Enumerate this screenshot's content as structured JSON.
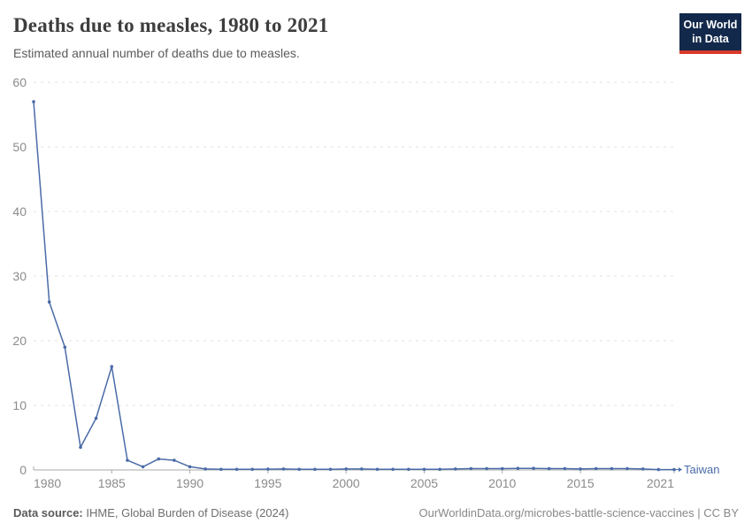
{
  "header": {
    "title": "Deaths due to measles, 1980 to 2021",
    "subtitle": "Estimated annual number of deaths due to measles.",
    "logo_line1": "Our World",
    "logo_line2": "in Data"
  },
  "chart_data": {
    "type": "line",
    "title": "Deaths due to measles, 1980 to 2021",
    "xlabel": "",
    "ylabel": "",
    "xlim": [
      1980,
      2021
    ],
    "ylim": [
      0,
      60
    ],
    "grid": "horizontal-dashed",
    "legend_position": "end-of-line",
    "x_ticks": [
      1980,
      1985,
      1990,
      1995,
      2000,
      2005,
      2010,
      2015,
      2021
    ],
    "y_ticks": [
      0,
      10,
      20,
      30,
      40,
      50,
      60
    ],
    "x": [
      1980,
      1981,
      1982,
      1983,
      1984,
      1985,
      1986,
      1987,
      1988,
      1989,
      1990,
      1991,
      1992,
      1993,
      1994,
      1995,
      1996,
      1997,
      1998,
      1999,
      2000,
      2001,
      2002,
      2003,
      2004,
      2005,
      2006,
      2007,
      2008,
      2009,
      2010,
      2011,
      2012,
      2013,
      2014,
      2015,
      2016,
      2017,
      2018,
      2019,
      2020,
      2021
    ],
    "series": [
      {
        "name": "Taiwan",
        "color": "#4a6ba8",
        "values": [
          57,
          26,
          19,
          3.5,
          8,
          16,
          1.5,
          0.5,
          1.7,
          1.5,
          0.5,
          0.15,
          0.1,
          0.1,
          0.1,
          0.12,
          0.15,
          0.1,
          0.1,
          0.1,
          0.15,
          0.15,
          0.1,
          0.1,
          0.1,
          0.1,
          0.1,
          0.15,
          0.2,
          0.2,
          0.2,
          0.25,
          0.25,
          0.2,
          0.2,
          0.15,
          0.2,
          0.2,
          0.2,
          0.15,
          0.05,
          0.05
        ]
      }
    ]
  },
  "footer": {
    "source_label": "Data source:",
    "source_text": " IHME, Global Burden of Disease (2024)",
    "credit": "OurWorldinData.org/microbes-battle-science-vaccines | CC BY"
  },
  "colors": {
    "line": "#4a6ba8",
    "grid": "#e2e2e2",
    "axis": "#a8a8a8",
    "tick_label": "#8b8b8b",
    "title": "#3d3d3d",
    "logo_bg": "#12294b",
    "logo_red": "#d93a2b"
  }
}
